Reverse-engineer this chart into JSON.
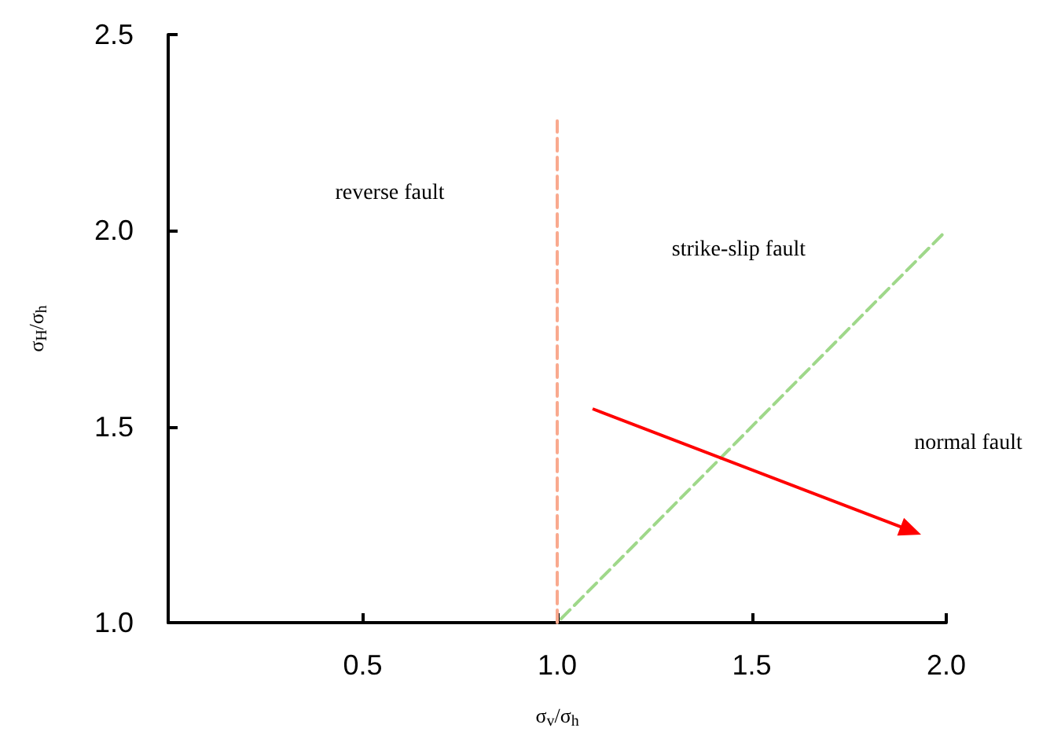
{
  "chart_data": {
    "type": "line",
    "xlabel": "σ$_{v}$/σ$_{h}$",
    "ylabel": "σ$_{H}$/σ$_{h}$",
    "xlim": [
      0,
      2
    ],
    "xticks": [
      0.5,
      {
        "value": 1,
        "label": "1.0"
      },
      1.5,
      {
        "value": 2,
        "label": "2.0"
      }
    ],
    "ylim": [
      1,
      2.5
    ],
    "yticks": [
      {
        "value": 1,
        "label": "1.0"
      },
      1.5,
      {
        "value": 2,
        "label": "2.0"
      },
      2.5
    ],
    "grid": false,
    "marker": "none",
    "series": [
      {
        "color": "#f9a98e",
        "line_style": "dashed",
        "x": [
          1,
          1
        ],
        "values": [
          1,
          2.28
        ]
      },
      {
        "color": "#9fd88a",
        "line_style": "dashed",
        "x": [
          1.01,
          2.0
        ],
        "values": [
          1.01,
          2.0
        ]
      }
    ],
    "annotations": [
      "reverse fault",
      "strike-slip fault",
      "normal fault"
    ]
  }
}
